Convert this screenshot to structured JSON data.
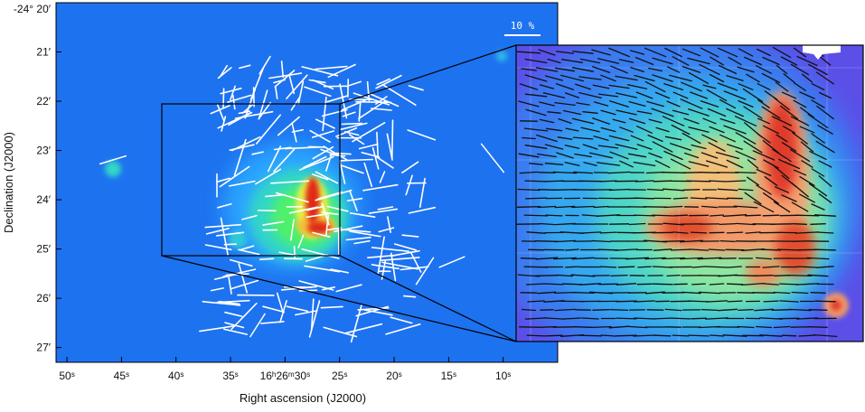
{
  "chart_data": {
    "type": "scatter",
    "title": "",
    "xlabel": "Right ascension (J2000)",
    "ylabel": "Declination (J2000)",
    "x_ticks": [
      "50ˢ",
      "45ˢ",
      "40ˢ",
      "35ˢ",
      "16ʰ26ᵐ30ˢ",
      "25ˢ",
      "20ˢ",
      "15ˢ",
      "10ˢ"
    ],
    "x_tick_values_sec": [
      50,
      45,
      40,
      35,
      30,
      25,
      20,
      15,
      10
    ],
    "y_ticks": [
      "-24° 20′",
      "21′",
      "22′",
      "23′",
      "24′",
      "25′",
      "26′",
      "27′"
    ],
    "y_tick_values_arcmin": [
      20,
      21,
      22,
      23,
      24,
      25,
      26,
      27
    ],
    "xlim_sec": [
      51,
      5
    ],
    "ylim_arcmin": [
      20,
      27.3
    ],
    "scale_bar_label": "10 %",
    "scale_bar_percent": 10,
    "inset": {
      "ra_range_sec": [
        41.2,
        25.4
      ],
      "dec_range_arcmin": [
        21.87,
        24.95
      ]
    },
    "colormap": [
      "#1f5bff",
      "#2aa6ff",
      "#33e0c8",
      "#9cf05a",
      "#f4e35a",
      "#f59a3a",
      "#e23a20"
    ],
    "background_color": "#1d72f0",
    "vector_color_main": "#ffffff",
    "vector_color_inset": "#111111"
  }
}
